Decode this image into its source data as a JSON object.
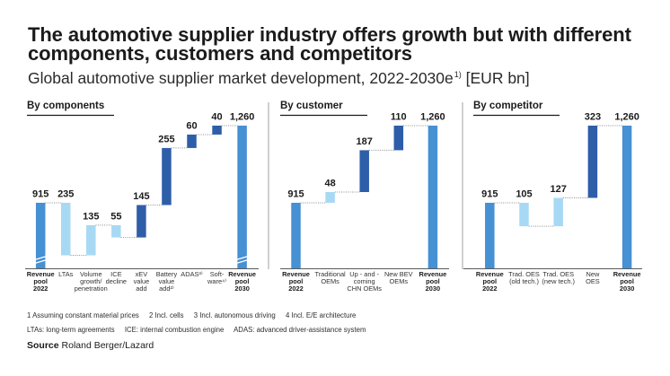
{
  "title_lines": [
    "The automotive supplier industry offers growth but with different",
    "components, customers and competitors"
  ],
  "subtitle": {
    "text": "Global automotive supplier market development, 2022-2030e",
    "footnote_ref": "1)",
    "unit": " [EUR bn]"
  },
  "colors": {
    "total": "#4690d4",
    "traditional": "#a8d9f4",
    "new": "#2f5ea9",
    "connector": "#8c8c8c",
    "axis": "#5a5a5a",
    "divider": "#bdbdbd",
    "break_mark": "#ffffff"
  },
  "chart_data": [
    {
      "type": "bar",
      "subtype": "waterfall",
      "title": "By components",
      "unit": "EUR bn",
      "categories": [
        [
          "Revenue",
          "pool",
          "2022"
        ],
        [
          "LTAs"
        ],
        [
          "Volume",
          "growth/",
          "penetration"
        ],
        [
          "ICE",
          "decline"
        ],
        [
          "xEV",
          "value",
          "add"
        ],
        [
          "Battery",
          "value",
          "add²⁾"
        ],
        [
          "ADAS³⁾"
        ],
        [
          "Soft-",
          "ware⁴⁾"
        ],
        [
          "Revenue",
          "pool",
          "2030"
        ]
      ],
      "values": [
        915,
        -235,
        135,
        -55,
        145,
        255,
        60,
        40,
        1260
      ],
      "labels": [
        "915",
        "235",
        "135",
        "55",
        "145",
        "255",
        "60",
        "40",
        "1,260"
      ],
      "bar_kinds": [
        "total",
        "traditional",
        "traditional",
        "traditional",
        "new",
        "new",
        "new",
        "new",
        "total"
      ],
      "ylim": [
        620,
        1260
      ],
      "axis_break": true
    },
    {
      "type": "bar",
      "subtype": "waterfall",
      "title": "By customer",
      "unit": "EUR bn",
      "categories": [
        [
          "Revenue",
          "pool",
          "2022"
        ],
        [
          "Traditional",
          "OEMs"
        ],
        [
          "Up - and -",
          "coming",
          "CHN OEMs"
        ],
        [
          "New BEV",
          "OEMs"
        ],
        [
          "Revenue",
          "pool",
          "2030"
        ]
      ],
      "values": [
        915,
        48,
        187,
        110,
        1260
      ],
      "labels": [
        "915",
        "48",
        "187",
        "110",
        "1,260"
      ],
      "bar_kinds": [
        "total",
        "traditional",
        "new",
        "new",
        "total"
      ],
      "ylim": [
        620,
        1260
      ],
      "axis_break": false
    },
    {
      "type": "bar",
      "subtype": "waterfall",
      "title": "By competitor",
      "unit": "EUR bn",
      "categories": [
        [
          "Revenue",
          "pool",
          "2022"
        ],
        [
          "Trad. OES",
          "(old tech.)"
        ],
        [
          "Trad. OES",
          "(new tech.)"
        ],
        [
          "New",
          "OES"
        ],
        [
          "Revenue",
          "pool",
          "2030"
        ]
      ],
      "values": [
        915,
        -105,
        127,
        323,
        1260
      ],
      "labels": [
        "915",
        "105",
        "127",
        "323",
        "1,260"
      ],
      "bar_kinds": [
        "total",
        "traditional",
        "traditional",
        "new",
        "total"
      ],
      "ylim": [
        620,
        1260
      ],
      "axis_break": false
    }
  ],
  "footnotes": {
    "notes": [
      "1 Assuming constant material prices",
      "2 Incl. cells",
      "3 Incl. autonomous driving",
      "4 Incl. E/E architecture"
    ],
    "abbreviations": [
      "LTAs: long-term agreements",
      "ICE: internal combustion engine",
      "ADAS: advanced driver-assistance system"
    ],
    "source_label": "Source",
    "source_text": " Roland Berger/Lazard"
  }
}
